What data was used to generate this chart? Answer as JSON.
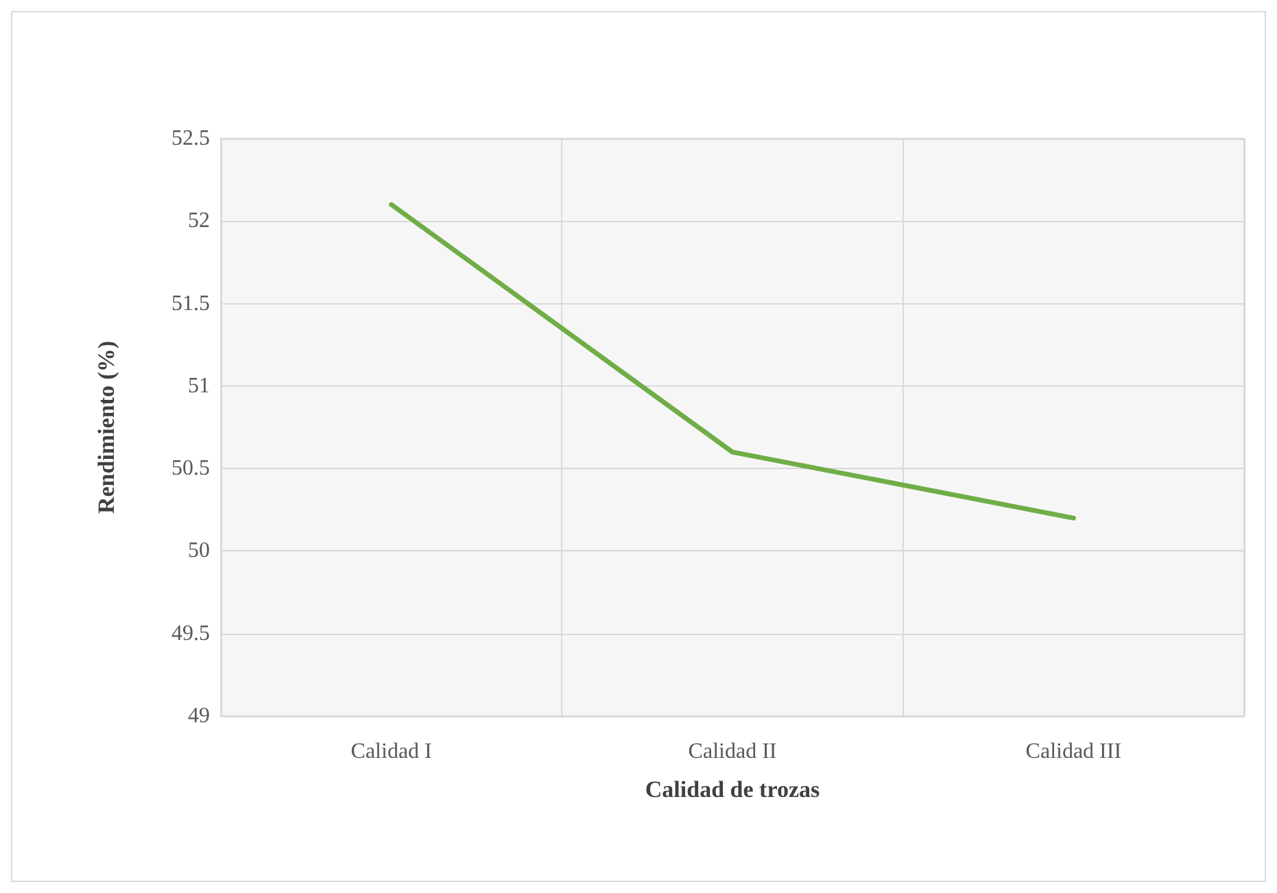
{
  "chart_data": {
    "type": "line",
    "xlabel": "Calidad de trozas",
    "ylabel": "Rendimiento (%)",
    "categories": [
      "Calidad I",
      "Calidad II",
      "Calidad III"
    ],
    "series": [
      {
        "color": "#70ad47",
        "values": [
          52.1,
          50.6,
          50.2
        ]
      }
    ],
    "ylim": [
      49,
      52.5
    ],
    "yticks": [
      49,
      49.5,
      50,
      50.5,
      51,
      51.5,
      52,
      52.5
    ],
    "grid": true,
    "marker": "none",
    "line_style": "solid"
  }
}
